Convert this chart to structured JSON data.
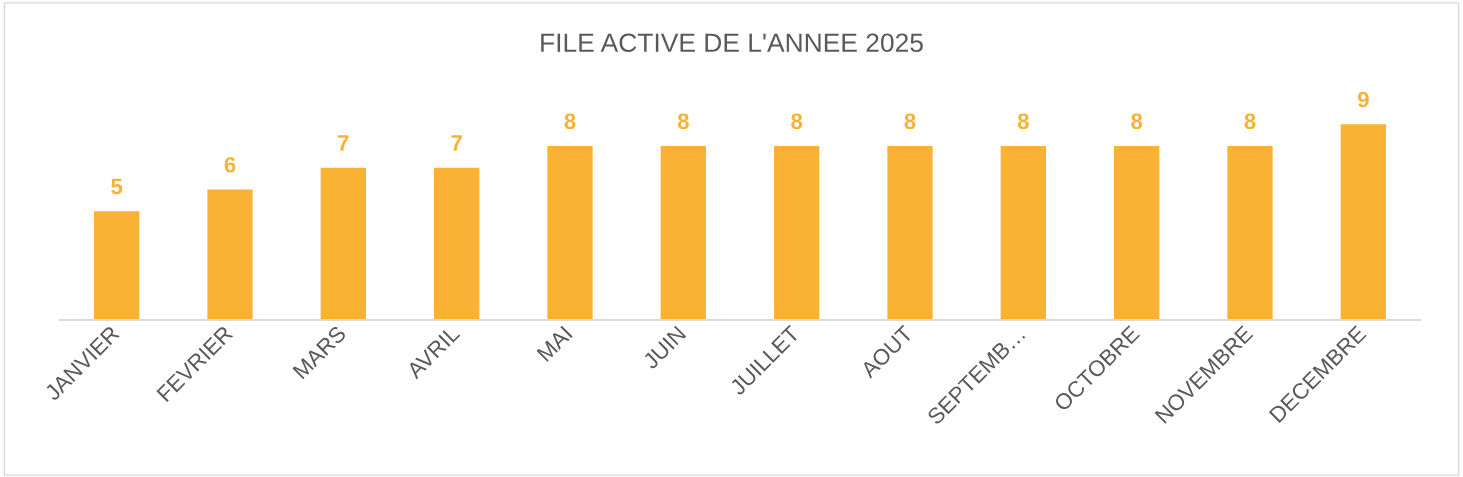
{
  "chart_data": {
    "type": "bar",
    "title": "FILE ACTIVE DE L'ANNEE 2025",
    "categories": [
      "JANVIER",
      "FEVRIER",
      "MARS",
      "AVRIL",
      "MAI",
      "JUIN",
      "JUILLET",
      "AOUT",
      "SEPTEMB…",
      "OCTOBRE",
      "NOVEMBRE",
      "DECEMBRE"
    ],
    "values": [
      5,
      6,
      7,
      7,
      8,
      8,
      8,
      8,
      8,
      8,
      8,
      9
    ],
    "color": "#f9b233",
    "data_labels": true,
    "grid": false,
    "legend": false
  }
}
